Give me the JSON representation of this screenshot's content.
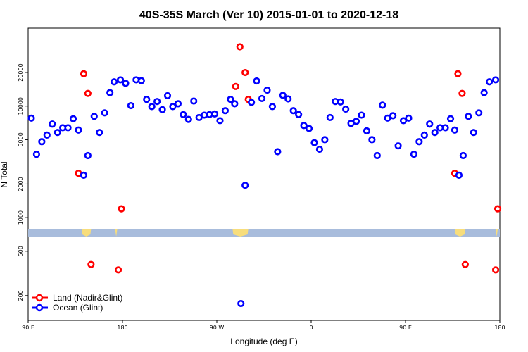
{
  "chart_data": {
    "type": "scatter",
    "title": "40S-35S March (Ver 10)   2015-01-01 to 2020-12-18",
    "xlabel": "Longitude (deg E)",
    "ylabel": "N Total",
    "y_scale": "log",
    "ylim": [
      120,
      50000
    ],
    "x_ticks": [
      {
        "x": 90,
        "label": "90 E"
      },
      {
        "x": 180,
        "label": "180"
      },
      {
        "x": 270,
        "label": "90 W"
      },
      {
        "x": 360,
        "label": "0"
      },
      {
        "x": 450,
        "label": "90 E"
      },
      {
        "x": 540,
        "label": "180"
      }
    ],
    "xlim": [
      90,
      540
    ],
    "y_ticks": [
      200,
      500,
      1000,
      2000,
      5000,
      10000,
      20000
    ],
    "grid": false,
    "legend_position": "bottom-left",
    "series": [
      {
        "name": "Land (Nadir&Glint)",
        "color": "#ff0000",
        "points": [
          {
            "x": 138,
            "y": 2500
          },
          {
            "x": 143,
            "y": 19500
          },
          {
            "x": 147,
            "y": 13000
          },
          {
            "x": 150,
            "y": 380
          },
          {
            "x": 176,
            "y": 340
          },
          {
            "x": 179,
            "y": 1200
          },
          {
            "x": 288,
            "y": 15000
          },
          {
            "x": 292,
            "y": 34000
          },
          {
            "x": 297,
            "y": 20000
          },
          {
            "x": 300,
            "y": 11500
          },
          {
            "x": 497,
            "y": 2500
          },
          {
            "x": 500,
            "y": 19500
          },
          {
            "x": 504,
            "y": 13000
          },
          {
            "x": 507,
            "y": 380
          },
          {
            "x": 536,
            "y": 340
          },
          {
            "x": 538,
            "y": 1200
          }
        ]
      },
      {
        "name": "Ocean (Glint)",
        "color": "#0000ff",
        "points": [
          {
            "x": 93,
            "y": 7800
          },
          {
            "x": 98,
            "y": 3700
          },
          {
            "x": 103,
            "y": 4800
          },
          {
            "x": 108,
            "y": 5500
          },
          {
            "x": 113,
            "y": 6900
          },
          {
            "x": 118,
            "y": 5800
          },
          {
            "x": 123,
            "y": 6400
          },
          {
            "x": 128,
            "y": 6400
          },
          {
            "x": 133,
            "y": 7700
          },
          {
            "x": 138,
            "y": 6100
          },
          {
            "x": 143,
            "y": 2400
          },
          {
            "x": 147,
            "y": 3600
          },
          {
            "x": 153,
            "y": 8100
          },
          {
            "x": 158,
            "y": 5800
          },
          {
            "x": 163,
            "y": 8700
          },
          {
            "x": 168,
            "y": 13200
          },
          {
            "x": 172,
            "y": 16500
          },
          {
            "x": 178,
            "y": 17200
          },
          {
            "x": 183,
            "y": 16000
          },
          {
            "x": 188,
            "y": 10100
          },
          {
            "x": 193,
            "y": 17200
          },
          {
            "x": 198,
            "y": 16900
          },
          {
            "x": 203,
            "y": 11500
          },
          {
            "x": 208,
            "y": 9900
          },
          {
            "x": 213,
            "y": 11000
          },
          {
            "x": 218,
            "y": 9300
          },
          {
            "x": 223,
            "y": 12400
          },
          {
            "x": 228,
            "y": 9900
          },
          {
            "x": 233,
            "y": 10500
          },
          {
            "x": 238,
            "y": 8400
          },
          {
            "x": 243,
            "y": 7600
          },
          {
            "x": 248,
            "y": 11100
          },
          {
            "x": 253,
            "y": 7900
          },
          {
            "x": 258,
            "y": 8300
          },
          {
            "x": 263,
            "y": 8400
          },
          {
            "x": 268,
            "y": 8500
          },
          {
            "x": 273,
            "y": 7400
          },
          {
            "x": 278,
            "y": 9100
          },
          {
            "x": 283,
            "y": 11500
          },
          {
            "x": 287,
            "y": 10500
          },
          {
            "x": 293,
            "y": 170
          },
          {
            "x": 297,
            "y": 1950
          },
          {
            "x": 303,
            "y": 10800
          },
          {
            "x": 308,
            "y": 16800
          },
          {
            "x": 313,
            "y": 11700
          },
          {
            "x": 318,
            "y": 13900
          },
          {
            "x": 323,
            "y": 9900
          },
          {
            "x": 328,
            "y": 3900
          },
          {
            "x": 333,
            "y": 12500
          },
          {
            "x": 338,
            "y": 11600
          },
          {
            "x": 343,
            "y": 9100
          },
          {
            "x": 348,
            "y": 8400
          },
          {
            "x": 353,
            "y": 6700
          },
          {
            "x": 358,
            "y": 6300
          },
          {
            "x": 363,
            "y": 4700
          },
          {
            "x": 368,
            "y": 4100
          },
          {
            "x": 373,
            "y": 5000
          },
          {
            "x": 378,
            "y": 7900
          },
          {
            "x": 383,
            "y": 11000
          },
          {
            "x": 388,
            "y": 10900
          },
          {
            "x": 393,
            "y": 9400
          },
          {
            "x": 398,
            "y": 7000
          },
          {
            "x": 403,
            "y": 7300
          },
          {
            "x": 408,
            "y": 8300
          },
          {
            "x": 413,
            "y": 6000
          },
          {
            "x": 418,
            "y": 5000
          },
          {
            "x": 423,
            "y": 3600
          },
          {
            "x": 428,
            "y": 10200
          },
          {
            "x": 433,
            "y": 7800
          },
          {
            "x": 438,
            "y": 8200
          },
          {
            "x": 443,
            "y": 4400
          },
          {
            "x": 448,
            "y": 7400
          },
          {
            "x": 453,
            "y": 7800
          },
          {
            "x": 458,
            "y": 3700
          },
          {
            "x": 463,
            "y": 4800
          },
          {
            "x": 468,
            "y": 5500
          },
          {
            "x": 473,
            "y": 6900
          },
          {
            "x": 478,
            "y": 5800
          },
          {
            "x": 483,
            "y": 6400
          },
          {
            "x": 488,
            "y": 6400
          },
          {
            "x": 493,
            "y": 7700
          },
          {
            "x": 497,
            "y": 6100
          },
          {
            "x": 501,
            "y": 2400
          },
          {
            "x": 505,
            "y": 3600
          },
          {
            "x": 510,
            "y": 8100
          },
          {
            "x": 515,
            "y": 5800
          },
          {
            "x": 520,
            "y": 8700
          },
          {
            "x": 525,
            "y": 13200
          },
          {
            "x": 530,
            "y": 16500
          },
          {
            "x": 536,
            "y": 17200
          }
        ]
      }
    ],
    "map_strip": {
      "ocean_color": "#a8bcdc",
      "land_color": "#f7dd7c",
      "land_ranges": [
        [
          141,
          150
        ],
        [
          173,
          175
        ],
        [
          285,
          300
        ],
        [
          497,
          507
        ],
        [
          536,
          538
        ]
      ]
    }
  }
}
